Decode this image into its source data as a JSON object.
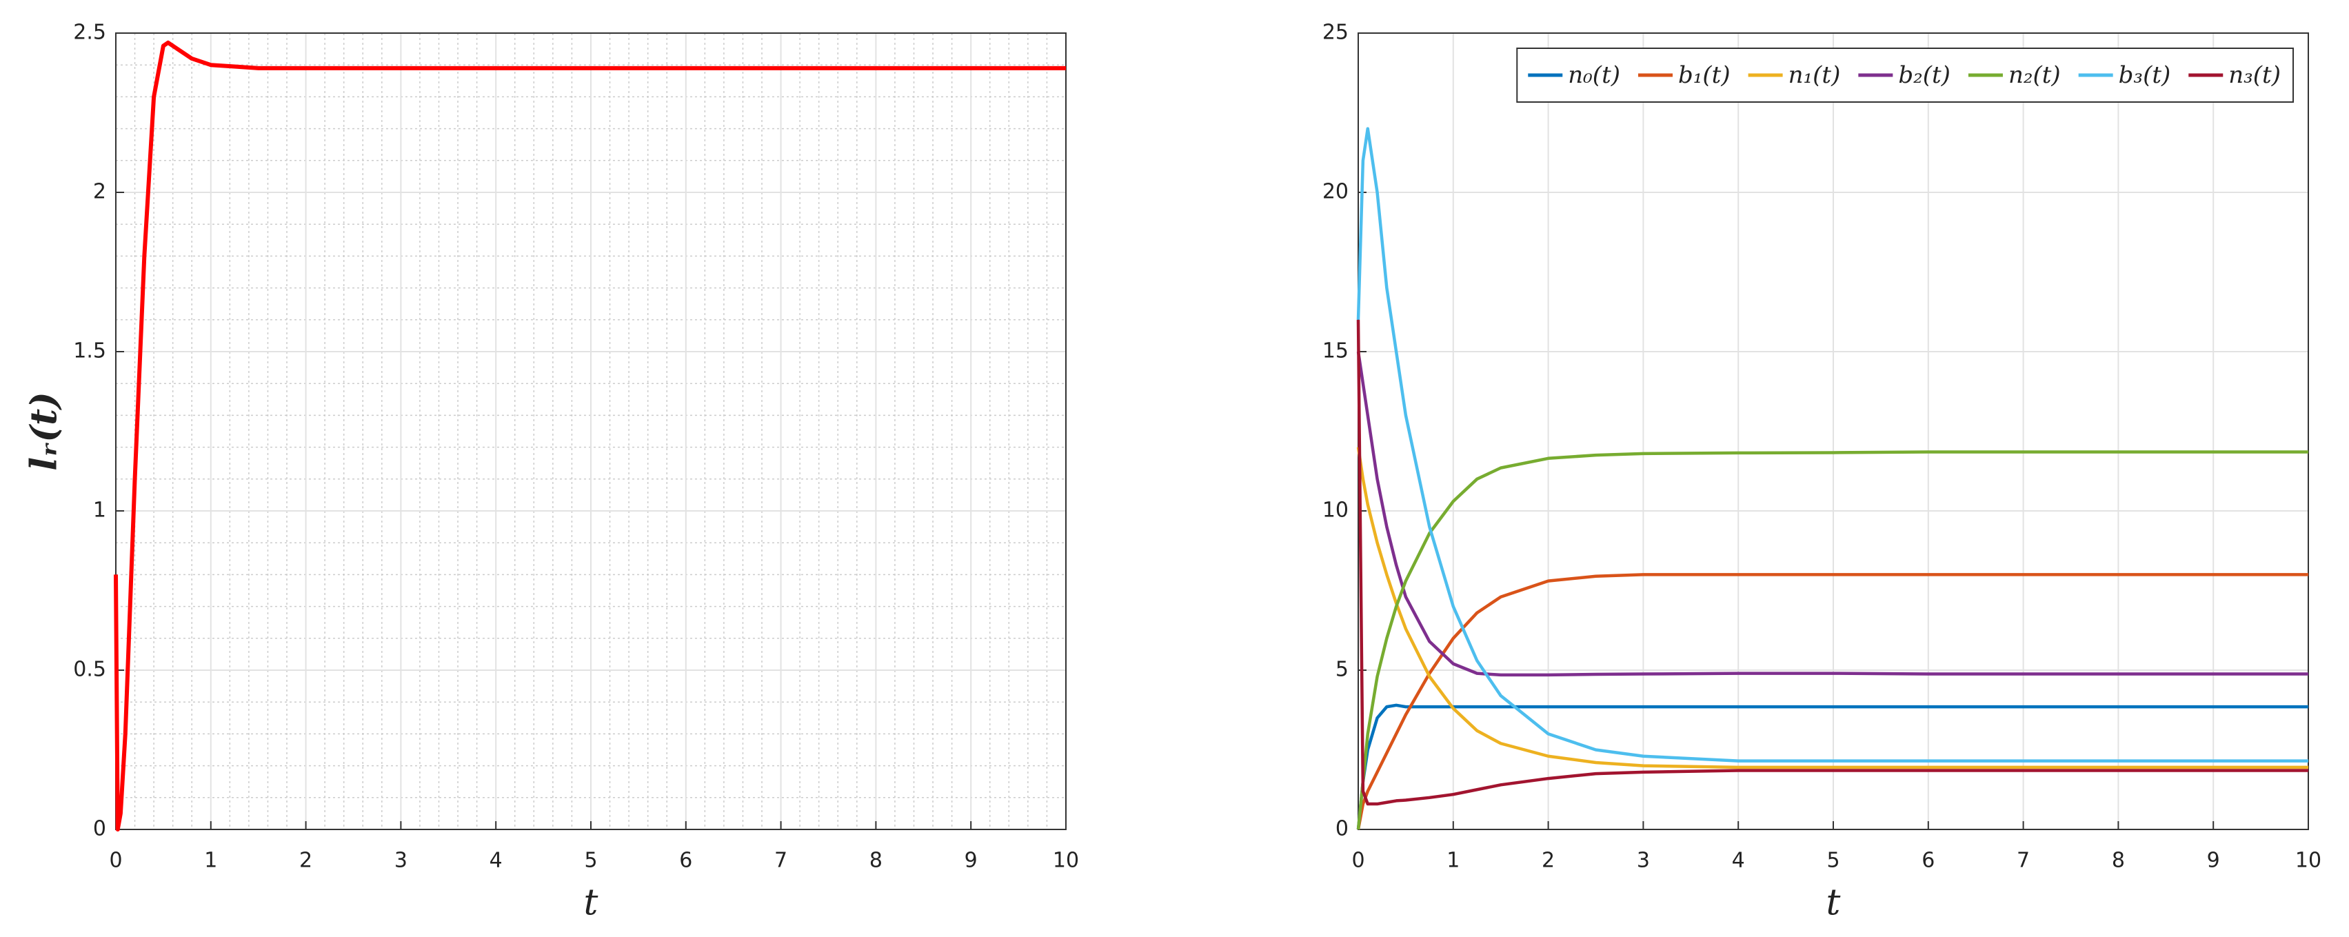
{
  "chart_data": [
    {
      "type": "line",
      "xlabel": "t",
      "ylabel": "lᵣ(t)",
      "x": [
        0,
        0.02,
        0.05,
        0.1,
        0.2,
        0.3,
        0.4,
        0.5,
        0.55,
        0.6,
        0.7,
        0.8,
        1,
        1.25,
        1.5,
        2,
        3,
        4,
        5,
        6,
        7,
        8,
        9,
        10
      ],
      "series": [
        {
          "color": "#ff0000",
          "values": [
            0.8,
            0,
            0.05,
            0.3,
            1.1,
            1.8,
            2.3,
            2.46,
            2.47,
            2.46,
            2.44,
            2.42,
            2.4,
            2.395,
            2.39,
            2.39,
            2.39,
            2.39,
            2.39,
            2.39,
            2.39,
            2.39,
            2.39,
            2.39
          ]
        }
      ],
      "xlim": [
        0,
        10
      ],
      "ylim": [
        0,
        2.5
      ],
      "xticks": [
        0,
        1,
        2,
        3,
        4,
        5,
        6,
        7,
        8,
        9,
        10
      ],
      "yticks": [
        0,
        0.5,
        1,
        1.5,
        2,
        2.5
      ],
      "grid": true,
      "minor_grid": true
    },
    {
      "type": "line",
      "xlabel": "t",
      "x": [
        0,
        0.05,
        0.1,
        0.2,
        0.3,
        0.4,
        0.5,
        0.75,
        1,
        1.25,
        1.5,
        2,
        2.5,
        3,
        4,
        5,
        6,
        7,
        8,
        9,
        10
      ],
      "series": [
        {
          "name": "n₀(t)",
          "color": "#0072bd",
          "values": [
            0,
            1.5,
            2.5,
            3.5,
            3.85,
            3.9,
            3.85,
            3.85,
            3.85,
            3.85,
            3.85,
            3.85,
            3.85,
            3.85,
            3.85,
            3.85,
            3.85,
            3.85,
            3.85,
            3.85,
            3.85
          ]
        },
        {
          "name": "b₁(t)",
          "color": "#d95319",
          "values": [
            0,
            0.8,
            1.2,
            1.8,
            2.4,
            3,
            3.6,
            4.9,
            6,
            6.8,
            7.3,
            7.8,
            7.95,
            8,
            8,
            8,
            8,
            8,
            8,
            8,
            8
          ]
        },
        {
          "name": "n₁(t)",
          "color": "#edb120",
          "values": [
            12,
            11,
            10.2,
            9,
            8,
            7.1,
            6.3,
            4.8,
            3.8,
            3.1,
            2.7,
            2.3,
            2.1,
            2,
            1.95,
            1.95,
            1.95,
            1.95,
            1.95,
            1.95,
            1.95
          ]
        },
        {
          "name": "b₂(t)",
          "color": "#7e2f8e",
          "values": [
            15,
            14,
            13,
            11,
            9.5,
            8.3,
            7.3,
            5.9,
            5.2,
            4.9,
            4.85,
            4.85,
            4.87,
            4.88,
            4.9,
            4.9,
            4.88,
            4.88,
            4.88,
            4.88,
            4.88
          ]
        },
        {
          "name": "n₂(t)",
          "color": "#77ac30",
          "values": [
            0,
            1.5,
            3,
            4.8,
            6,
            7,
            7.8,
            9.3,
            10.3,
            11,
            11.35,
            11.65,
            11.75,
            11.8,
            11.82,
            11.83,
            11.85,
            11.85,
            11.85,
            11.85,
            11.85
          ]
        },
        {
          "name": "b₃(t)",
          "color": "#4dbeee",
          "values": [
            16,
            21,
            22,
            20,
            17,
            15,
            13,
            9.5,
            7,
            5.3,
            4.2,
            3,
            2.5,
            2.3,
            2.15,
            2.15,
            2.15,
            2.15,
            2.15,
            2.15,
            2.15
          ]
        },
        {
          "name": "n₃(t)",
          "color": "#a2142f",
          "values": [
            16,
            1.2,
            0.8,
            0.8,
            0.85,
            0.9,
            0.92,
            1,
            1.1,
            1.25,
            1.4,
            1.6,
            1.75,
            1.8,
            1.85,
            1.85,
            1.85,
            1.85,
            1.85,
            1.85,
            1.85
          ]
        }
      ],
      "xlim": [
        0,
        10
      ],
      "ylim": [
        0,
        25
      ],
      "xticks": [
        0,
        1,
        2,
        3,
        4,
        5,
        6,
        7,
        8,
        9,
        10
      ],
      "yticks": [
        0,
        5,
        10,
        15,
        20,
        25
      ],
      "grid": true,
      "minor_grid": false,
      "legend": "top-right"
    }
  ]
}
